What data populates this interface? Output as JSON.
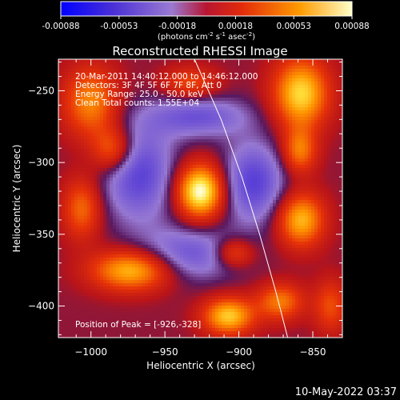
{
  "chart_data": {
    "type": "heatmap",
    "title": "Reconstructed RHESSI Image",
    "xlabel": "Heliocentric X (arcsec)",
    "ylabel": "Heliocentric Y (arcsec)",
    "xlim": [
      -1022,
      -830
    ],
    "ylim": [
      -422,
      -228
    ],
    "xticks": [
      -1000,
      -950,
      -900,
      -850
    ],
    "yticks": [
      -250,
      -300,
      -350,
      -400
    ],
    "colorbar": {
      "min": -0.00088,
      "max": 0.00088,
      "ticks": [
        "-0.00088",
        "-0.00053",
        "-0.00018",
        "0.00018",
        "0.00053",
        "0.00088"
      ],
      "label_main": "(photons cm",
      "label_sup1": "-2",
      "label_mid": " s",
      "label_sup2": "-1",
      "label_mid2": " asec",
      "label_sup3": "-2",
      "label_end": ")"
    },
    "annotations": [
      "20-Mar-2011 14:40:12.000 to 14:46:12.000",
      "Detectors: 3F 4F 5F 6F 7F 8F, Att 0",
      "Energy Range: 25.0 - 50.0 keV",
      "Clean    Total counts: 1.55E+04"
    ],
    "peak_label": "Position of Peak = [-926,-328]",
    "peak": [
      -926,
      -328
    ],
    "limb": [
      [
        -930,
        -228
      ],
      [
        -912,
        -270
      ],
      [
        -898,
        -310
      ],
      [
        -886,
        -350
      ],
      [
        -875,
        -390
      ],
      [
        -867,
        -422
      ]
    ],
    "blobs": [
      {
        "x": -926,
        "y": -320,
        "sx": 11,
        "sy": 13,
        "a": 1.05
      },
      {
        "x": -968,
        "y": -307,
        "sx": 17,
        "sy": 24,
        "a": -0.55
      },
      {
        "x": -890,
        "y": -314,
        "sx": 15,
        "sy": 20,
        "a": -0.55
      },
      {
        "x": -928,
        "y": -268,
        "sx": 24,
        "sy": 10,
        "a": -0.45
      },
      {
        "x": -935,
        "y": -364,
        "sx": 24,
        "sy": 13,
        "a": -0.45
      },
      {
        "x": -1000,
        "y": -258,
        "sx": 13,
        "sy": 17,
        "a": 0.6
      },
      {
        "x": -985,
        "y": -291,
        "sx": 10,
        "sy": 11,
        "a": 0.55
      },
      {
        "x": -1006,
        "y": -332,
        "sx": 9,
        "sy": 15,
        "a": 0.5
      },
      {
        "x": -972,
        "y": -375,
        "sx": 19,
        "sy": 10,
        "a": 0.8
      },
      {
        "x": -933,
        "y": -245,
        "sx": 13,
        "sy": 8,
        "a": 0.4
      },
      {
        "x": -858,
        "y": -252,
        "sx": 13,
        "sy": 17,
        "a": 0.85
      },
      {
        "x": -859,
        "y": -292,
        "sx": 8,
        "sy": 11,
        "a": 0.55
      },
      {
        "x": -858,
        "y": -340,
        "sx": 11,
        "sy": 13,
        "a": 0.75
      },
      {
        "x": -907,
        "y": -407,
        "sx": 12,
        "sy": 9,
        "a": 0.8
      },
      {
        "x": -872,
        "y": -397,
        "sx": 11,
        "sy": 9,
        "a": 0.55
      },
      {
        "x": -903,
        "y": -363,
        "sx": 9,
        "sy": 7,
        "a": 0.45
      },
      {
        "x": -838,
        "y": -400,
        "sx": 8,
        "sy": 13,
        "a": 0.4
      }
    ]
  },
  "footer": {
    "timestamp": "10-May-2022 03:37"
  }
}
